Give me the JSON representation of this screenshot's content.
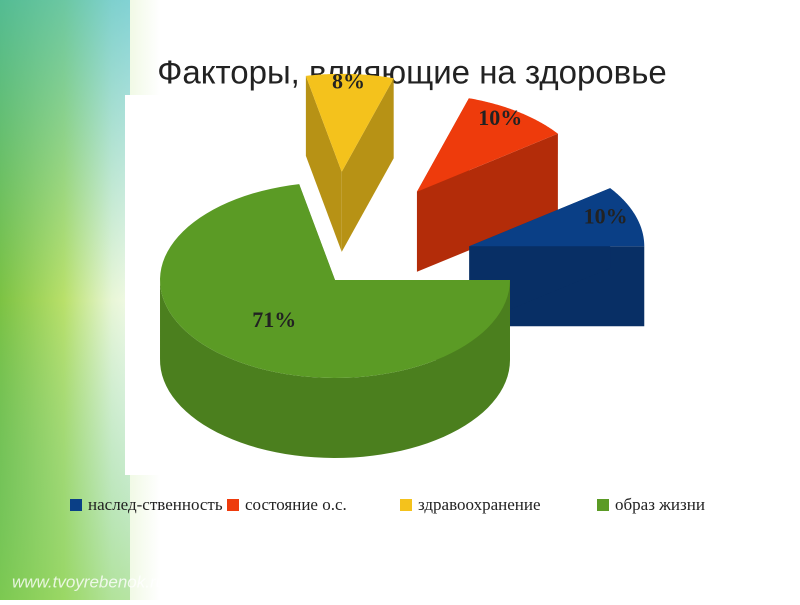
{
  "chart_data": {
    "type": "pie",
    "title": "Факторы, влияющие на здоровье",
    "categories": [
      "наслед-ственность",
      "состояние о.с.",
      "здравоохранение",
      "образ жизни"
    ],
    "values": [
      10,
      10,
      8,
      71
    ],
    "value_labels": [
      "10%",
      "10%",
      "8%",
      "71%"
    ],
    "colors": [
      "#0a3f86",
      "#ee3b0c",
      "#f4c21c",
      "#5b9b25"
    ],
    "legend": "bottom"
  },
  "watermark": "www.tvoyrebenok.ru"
}
